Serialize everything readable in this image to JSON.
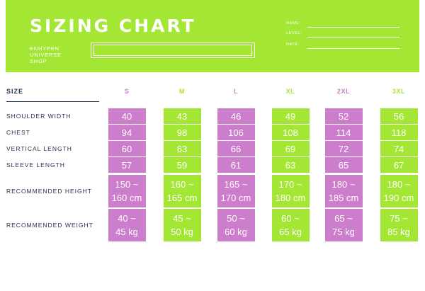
{
  "header": {
    "title": "SIZING CHART",
    "shop_lines": [
      "ENHYPEN",
      "UNIVERSE",
      "SHOP"
    ],
    "fields": [
      "NAME:",
      "LEVEL:",
      "DATE:"
    ]
  },
  "table": {
    "size_label": "SIZE",
    "columns": [
      "S",
      "M",
      "L",
      "XL",
      "2XL",
      "3XL"
    ],
    "rows": [
      {
        "label": "SHOULDER WIDTH",
        "values": [
          "40",
          "43",
          "46",
          "49",
          "52",
          "56"
        ]
      },
      {
        "label": "CHEST",
        "values": [
          "94",
          "98",
          "106",
          "108",
          "114",
          "118"
        ]
      },
      {
        "label": "VERTICAL LENGTH",
        "values": [
          "60",
          "63",
          "66",
          "69",
          "72",
          "74"
        ]
      },
      {
        "label": "SLEEVE LENGTH",
        "values": [
          "57",
          "59",
          "61",
          "63",
          "65",
          "67"
        ]
      },
      {
        "label": "RECOMMENDED HEIGHT",
        "values": [
          "150 ~ 160 cm",
          "160 ~ 165 cm",
          "165 ~ 170 cm",
          "170 ~ 180 cm",
          "180 ~ 185 cm",
          "180 ~ 190 cm"
        ]
      },
      {
        "label": "RECOMMENDED WEIGHT",
        "values": [
          "40 ~ 45 kg",
          "45 ~ 50 kg",
          "50 ~ 60 kg",
          "60 ~ 65 kg",
          "65 ~ 75 kg",
          "75 ~ 85 kg"
        ]
      }
    ]
  },
  "colors": {
    "green": "#a4e634",
    "pink": "#cc7dcb",
    "navy": "#24334f"
  }
}
